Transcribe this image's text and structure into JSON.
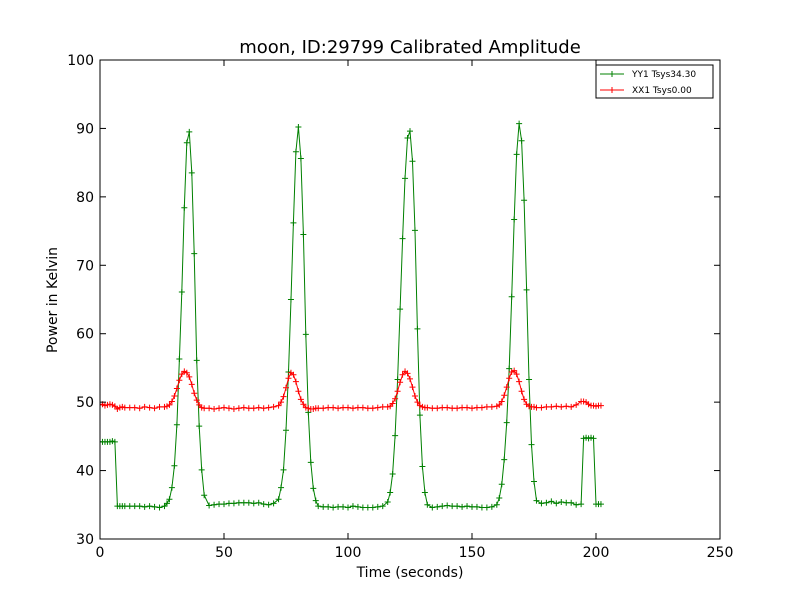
{
  "chart_data": {
    "type": "line",
    "title": "moon, ID:29799 Calibrated Amplitude",
    "xlabel": "Time (seconds)",
    "ylabel": "Power in Kelvin",
    "xlim": [
      0,
      250
    ],
    "ylim": [
      30,
      100
    ],
    "xticks": [
      "0",
      "50",
      "100",
      "150",
      "200",
      "250"
    ],
    "yticks": [
      "30",
      "40",
      "50",
      "60",
      "70",
      "80",
      "90",
      "100"
    ],
    "grid": false,
    "legend_position": "top-right",
    "marker": "+",
    "series": [
      {
        "name": "YY1 Tsys34.30",
        "color": "#008000",
        "x": [
          0,
          1,
          2,
          3,
          4,
          5,
          6,
          7,
          8,
          9,
          10,
          12,
          14,
          16,
          18,
          20,
          22,
          24,
          26,
          27,
          28,
          29,
          30,
          31,
          32,
          33,
          34,
          35,
          36,
          37,
          38,
          39,
          40,
          41,
          42,
          44,
          46,
          48,
          50,
          52,
          54,
          56,
          58,
          60,
          62,
          64,
          66,
          68,
          70,
          72,
          73,
          74,
          75,
          76,
          77,
          78,
          79,
          80,
          81,
          82,
          83,
          84,
          85,
          86,
          87,
          88,
          90,
          92,
          94,
          96,
          98,
          100,
          102,
          104,
          106,
          108,
          110,
          112,
          114,
          116,
          117,
          118,
          119,
          120,
          121,
          122,
          123,
          124,
          125,
          126,
          127,
          128,
          129,
          130,
          131,
          132,
          134,
          136,
          138,
          140,
          142,
          144,
          146,
          148,
          150,
          152,
          154,
          156,
          158,
          160,
          161,
          162,
          163,
          164,
          165,
          166,
          167,
          168,
          169,
          170,
          171,
          172,
          173,
          174,
          175,
          176,
          178,
          180,
          182,
          184,
          186,
          188,
          190,
          192,
          194,
          195,
          196,
          197,
          198,
          199,
          200,
          201,
          202
        ],
        "y": [
          44.2,
          44.2,
          44.2,
          44.2,
          44.2,
          44.3,
          44.2,
          34.8,
          34.8,
          34.8,
          34.8,
          34.8,
          34.8,
          34.8,
          34.7,
          34.8,
          34.7,
          34.6,
          34.8,
          35.2,
          35.8,
          37.5,
          40.7,
          46.7,
          56.3,
          66.1,
          78.4,
          87.9,
          89.5,
          83.5,
          71.7,
          56.1,
          46.5,
          40.1,
          36.4,
          34.9,
          35.0,
          35.1,
          35.1,
          35.2,
          35.2,
          35.3,
          35.3,
          35.3,
          35.2,
          35.3,
          35.1,
          35.0,
          35.2,
          35.8,
          37.5,
          40.1,
          45.9,
          54.4,
          65.0,
          76.2,
          86.6,
          90.2,
          85.6,
          74.5,
          59.9,
          48.5,
          41.2,
          37.4,
          35.6,
          34.8,
          34.7,
          34.7,
          34.6,
          34.7,
          34.7,
          34.6,
          34.8,
          34.7,
          34.6,
          34.6,
          34.6,
          34.7,
          34.8,
          35.4,
          36.8,
          39.5,
          45.1,
          53.3,
          63.6,
          73.9,
          82.7,
          88.6,
          89.6,
          85.2,
          75.1,
          60.7,
          48.1,
          40.6,
          36.8,
          35.0,
          34.6,
          34.7,
          34.8,
          34.9,
          34.8,
          34.8,
          34.7,
          34.8,
          34.7,
          34.7,
          34.6,
          34.6,
          34.7,
          35.0,
          36.0,
          38.0,
          41.6,
          47.0,
          54.9,
          65.4,
          76.7,
          86.2,
          90.7,
          88.2,
          79.5,
          66.4,
          53.3,
          43.8,
          38.4,
          35.6,
          35.2,
          35.3,
          35.5,
          35.2,
          35.4,
          35.3,
          35.3,
          35.0,
          35.1,
          44.7,
          44.8,
          44.7,
          44.8,
          44.7,
          35.1,
          35.1,
          35.1
        ]
      },
      {
        "name": "XX1 Tsys0.00",
        "color": "#ff0000",
        "x": [
          0,
          1,
          2,
          3,
          4,
          5,
          6,
          7,
          8,
          9,
          10,
          12,
          14,
          16,
          18,
          20,
          22,
          24,
          26,
          27,
          28,
          29,
          30,
          31,
          32,
          33,
          34,
          35,
          36,
          37,
          38,
          39,
          40,
          41,
          42,
          44,
          46,
          48,
          50,
          52,
          54,
          56,
          58,
          60,
          62,
          64,
          66,
          68,
          70,
          72,
          73,
          74,
          75,
          76,
          77,
          78,
          79,
          80,
          81,
          82,
          83,
          84,
          85,
          86,
          87,
          88,
          90,
          92,
          94,
          96,
          98,
          100,
          102,
          104,
          106,
          108,
          110,
          112,
          114,
          116,
          117,
          118,
          119,
          120,
          121,
          122,
          123,
          124,
          125,
          126,
          127,
          128,
          129,
          130,
          131,
          132,
          134,
          136,
          138,
          140,
          142,
          144,
          146,
          148,
          150,
          152,
          154,
          156,
          158,
          160,
          161,
          162,
          163,
          164,
          165,
          166,
          167,
          168,
          169,
          170,
          171,
          172,
          173,
          174,
          175,
          176,
          178,
          180,
          182,
          184,
          186,
          188,
          190,
          192,
          194,
          195,
          196,
          197,
          198,
          199,
          200,
          201,
          202
        ],
        "y": [
          49.6,
          49.7,
          49.5,
          49.6,
          49.7,
          49.6,
          49.4,
          49.0,
          49.2,
          49.3,
          49.2,
          49.2,
          49.2,
          49.1,
          49.3,
          49.2,
          49.1,
          49.3,
          49.3,
          49.4,
          49.6,
          50.1,
          50.9,
          52.0,
          53.2,
          54.1,
          54.5,
          54.3,
          53.7,
          52.6,
          51.3,
          50.3,
          49.6,
          49.2,
          49.1,
          49.1,
          49.0,
          49.1,
          49.2,
          49.1,
          49.0,
          49.1,
          49.2,
          49.1,
          49.1,
          49.2,
          49.1,
          49.2,
          49.3,
          49.5,
          50.0,
          50.8,
          52.1,
          53.5,
          54.3,
          54.0,
          53.0,
          51.6,
          50.4,
          49.7,
          49.2,
          49.1,
          49.0,
          49.0,
          49.1,
          49.1,
          49.1,
          49.2,
          49.2,
          49.1,
          49.2,
          49.2,
          49.1,
          49.2,
          49.2,
          49.1,
          49.1,
          49.2,
          49.3,
          49.3,
          49.4,
          49.8,
          50.5,
          51.6,
          52.9,
          54.0,
          54.5,
          54.2,
          53.4,
          52.2,
          50.9,
          50.0,
          49.5,
          49.3,
          49.2,
          49.2,
          49.1,
          49.1,
          49.2,
          49.2,
          49.1,
          49.1,
          49.2,
          49.2,
          49.1,
          49.2,
          49.2,
          49.3,
          49.3,
          49.4,
          49.6,
          50.1,
          51.0,
          52.2,
          53.5,
          54.4,
          54.6,
          54.1,
          53.0,
          51.6,
          50.4,
          49.7,
          49.4,
          49.3,
          49.3,
          49.2,
          49.2,
          49.3,
          49.3,
          49.4,
          49.3,
          49.4,
          49.3,
          49.6,
          50.1,
          50.1,
          50.0,
          49.7,
          49.5,
          49.5,
          49.4,
          49.5,
          49.5
        ]
      }
    ]
  }
}
